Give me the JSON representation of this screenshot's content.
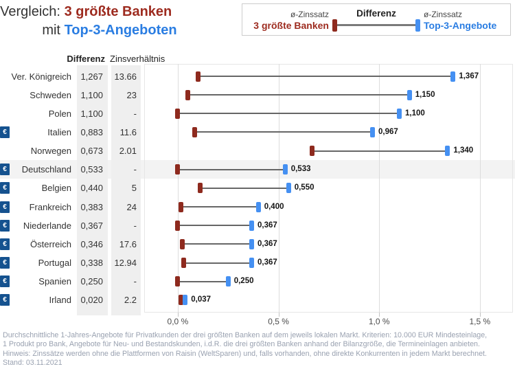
{
  "title": {
    "line1_prefix": "Vergleich:",
    "line1_highlight": "3 größte Banken",
    "line2_prefix": "mit",
    "line2_highlight": "Top-3-Angeboten"
  },
  "legend": {
    "left_caption": "ø-Zinssatz",
    "left_label": "3 größte Banken",
    "center_label": "Differenz",
    "right_caption": "ø-Zinssatz",
    "right_label": "Top-3-Angebote"
  },
  "table": {
    "differenz_header": "Differenz",
    "zinsverhaeltnis_header": "Zinsverhältnis"
  },
  "colors": {
    "banks_red_text": "#9d2b1f",
    "banks_red_marker": "#8e2a1e",
    "top3_blue_text": "#2a7de2",
    "top3_blue_marker": "#4590f2",
    "euro_badge_blue": "#15528f",
    "dumbbell_line": "#666666",
    "highlight_row": "#f3f3f3",
    "column_stripe": "#efefef"
  },
  "euro_badge_label": "€",
  "chart_data": {
    "type": "dumbbell",
    "title": "Vergleich: 3 größte Banken mit Top-3-Angeboten",
    "series_names": [
      "ø-Zinssatz 3 größte Banken",
      "ø-Zinssatz Top-3-Angebote"
    ],
    "unit": "%",
    "x_axis": {
      "min": 0,
      "max": 1.5,
      "tick_values": [
        0,
        0.5,
        1.0,
        1.5
      ],
      "tick_labels": [
        "0,0 %",
        "0,5 %",
        "1,0 %",
        "1,5 %"
      ],
      "grid": true
    },
    "legend_position": "top-right",
    "rows": [
      {
        "country": "Ver. Königreich",
        "eurozone": false,
        "differenz": "1,267",
        "zinsverhaeltnis": "13.66",
        "banks": 0.1,
        "banks_label": "0,100",
        "top3": 1.367,
        "top3_label": "1,367",
        "highlight": false
      },
      {
        "country": "Schweden",
        "eurozone": false,
        "differenz": "1,100",
        "zinsverhaeltnis": "23",
        "banks": 0.05,
        "banks_label": "0,050",
        "top3": 1.15,
        "top3_label": "1,150",
        "highlight": false
      },
      {
        "country": "Polen",
        "eurozone": false,
        "differenz": "1,100",
        "zinsverhaeltnis": "-",
        "banks": 0.0,
        "banks_label": "0,000",
        "top3": 1.1,
        "top3_label": "1,100",
        "highlight": false
      },
      {
        "country": "Italien",
        "eurozone": true,
        "differenz": "0,883",
        "zinsverhaeltnis": "11.6",
        "banks": 0.083,
        "banks_label": "0,083",
        "top3": 0.967,
        "top3_label": "0,967",
        "highlight": false
      },
      {
        "country": "Norwegen",
        "eurozone": false,
        "differenz": "0,673",
        "zinsverhaeltnis": "2.01",
        "banks": 0.667,
        "banks_label": "0,667",
        "top3": 1.34,
        "top3_label": "1,340",
        "highlight": false
      },
      {
        "country": "Deutschland",
        "eurozone": true,
        "differenz": "0,533",
        "zinsverhaeltnis": "-",
        "banks": 0.0,
        "banks_label": "0,000",
        "top3": 0.533,
        "top3_label": "0,533",
        "highlight": true
      },
      {
        "country": "Belgien",
        "eurozone": true,
        "differenz": "0,440",
        "zinsverhaeltnis": "5",
        "banks": 0.11,
        "banks_label": "0,110",
        "top3": 0.55,
        "top3_label": "0,550",
        "highlight": false
      },
      {
        "country": "Frankreich",
        "eurozone": true,
        "differenz": "0,383",
        "zinsverhaeltnis": "24",
        "banks": 0.017,
        "banks_label": "0,017",
        "top3": 0.4,
        "top3_label": "0,400",
        "highlight": false
      },
      {
        "country": "Niederlande",
        "eurozone": true,
        "differenz": "0,367",
        "zinsverhaeltnis": "-",
        "banks": 0.0,
        "banks_label": "0,000",
        "top3": 0.367,
        "top3_label": "0,367",
        "highlight": false
      },
      {
        "country": "Österreich",
        "eurozone": true,
        "differenz": "0,346",
        "zinsverhaeltnis": "17.6",
        "banks": 0.021,
        "banks_label": "0,021",
        "top3": 0.367,
        "top3_label": "0,367",
        "highlight": false
      },
      {
        "country": "Portugal",
        "eurozone": true,
        "differenz": "0,338",
        "zinsverhaeltnis": "12.94",
        "banks": 0.028,
        "banks_label": "0,028",
        "top3": 0.367,
        "top3_label": "0,367",
        "highlight": false
      },
      {
        "country": "Spanien",
        "eurozone": true,
        "differenz": "0,250",
        "zinsverhaeltnis": "-",
        "banks": 0.0,
        "banks_label": "0,000",
        "top3": 0.25,
        "top3_label": "0,250",
        "highlight": false
      },
      {
        "country": "Irland",
        "eurozone": true,
        "differenz": "0,020",
        "zinsverhaeltnis": "2.2",
        "banks": 0.017,
        "banks_label": "0,017",
        "top3": 0.037,
        "top3_label": "0,037",
        "highlight": false
      }
    ]
  },
  "footnote": {
    "lines": [
      "Durchschnittliche 1-Jahres-Angebote für Privatkunden der drei größten Banken auf dem jeweils lokalen Markt. Kriterien: 10.000 EUR Mindesteinlage,",
      "1 Produkt pro Bank, Angebote für Neu- und Bestandskunden, i.d.R. die drei größten Banken anhand der Bilanzgröße, die Termineinlagen anbieten.",
      "Hinweis: Zinssätze werden ohne die Plattformen von Raisin (WeltSparen) und, falls vorhanden, ohne direkte Konkurrenten in jedem Markt berechnet.",
      "Stand: 03.11.2021"
    ]
  }
}
